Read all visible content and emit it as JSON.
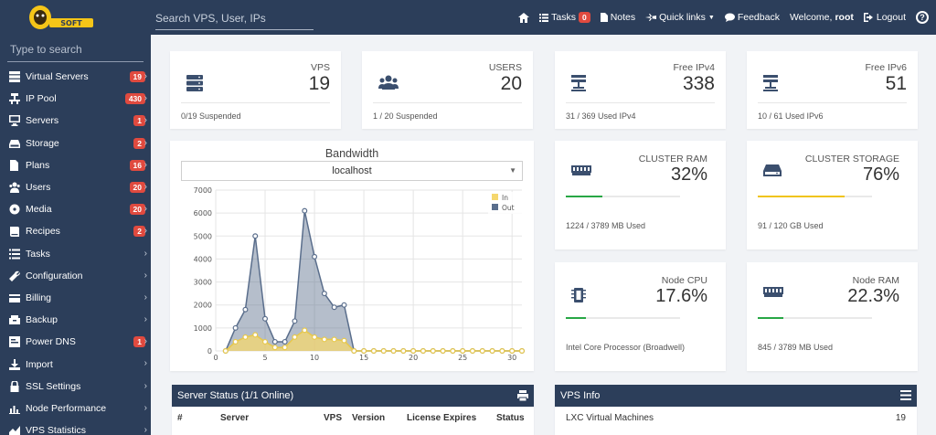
{
  "topbar": {
    "search_placeholder": "Search VPS, User, IPs",
    "tasks_label": "Tasks",
    "tasks_count": "0",
    "notes_label": "Notes",
    "quicklinks_label": "Quick links",
    "feedback_label": "Feedback",
    "welcome_label": "Welcome,",
    "username": "root",
    "logout_label": "Logout"
  },
  "sidebar": {
    "search_placeholder": "Type to search",
    "items": [
      {
        "label": "Virtual Servers",
        "count": "19",
        "icon": "server-icon"
      },
      {
        "label": "IP Pool",
        "count": "430",
        "icon": "ip-pool-icon"
      },
      {
        "label": "Servers",
        "count": "1",
        "icon": "desktop-icon"
      },
      {
        "label": "Storage",
        "count": "2",
        "icon": "hdd-icon"
      },
      {
        "label": "Plans",
        "count": "16",
        "icon": "file-icon"
      },
      {
        "label": "Users",
        "count": "20",
        "icon": "users-icon"
      },
      {
        "label": "Media",
        "count": "20",
        "icon": "disc-icon"
      },
      {
        "label": "Recipes",
        "count": "2",
        "icon": "book-icon"
      },
      {
        "label": "Tasks",
        "count": "",
        "icon": "tasks-icon"
      },
      {
        "label": "Configuration",
        "count": "",
        "icon": "wrench-icon"
      },
      {
        "label": "Billing",
        "count": "",
        "icon": "billing-icon"
      },
      {
        "label": "Backup",
        "count": "",
        "icon": "backup-icon"
      },
      {
        "label": "Power DNS",
        "count": "1",
        "icon": "dns-icon"
      },
      {
        "label": "Import",
        "count": "",
        "icon": "download-icon"
      },
      {
        "label": "SSL Settings",
        "count": "",
        "icon": "lock-icon"
      },
      {
        "label": "Node Performance",
        "count": "",
        "icon": "chart-icon"
      },
      {
        "label": "VPS Statistics",
        "count": "",
        "icon": "stats-icon"
      }
    ]
  },
  "stats": {
    "vps": {
      "label": "VPS",
      "value": "19",
      "foot": "0/19 Suspended"
    },
    "users": {
      "label": "USERS",
      "value": "20",
      "foot": "1 / 20 Suspended"
    },
    "ipv4": {
      "label": "Free IPv4",
      "value": "338",
      "foot": "31 / 369 Used IPv4"
    },
    "ipv6": {
      "label": "Free IPv6",
      "value": "51",
      "foot": "10 / 61 Used IPv6"
    }
  },
  "resources": {
    "cluster_ram": {
      "label": "CLUSTER RAM",
      "value": "32%",
      "foot": "1224 / 3789 MB Used",
      "fill": 0.32,
      "color": "#28a745"
    },
    "cluster_storage": {
      "label": "CLUSTER STORAGE",
      "value": "76%",
      "foot": "91 / 120 GB Used",
      "fill": 0.76,
      "color": "#f0c419"
    },
    "node_cpu": {
      "label": "Node CPU",
      "value": "17.6%",
      "foot": "Intel Core Processor (Broadwell)",
      "fill": 0.176,
      "color": "#28a745"
    },
    "node_ram": {
      "label": "Node RAM",
      "value": "22.3%",
      "foot": "845 / 3789 MB Used",
      "fill": 0.223,
      "color": "#28a745"
    }
  },
  "bandwidth": {
    "title": "Bandwidth",
    "selected_server": "localhost"
  },
  "chart_data": {
    "type": "area",
    "x": [
      1,
      2,
      3,
      4,
      5,
      6,
      7,
      8,
      9,
      10,
      11,
      12,
      13,
      14,
      15,
      16,
      17,
      18,
      19,
      20,
      21,
      22,
      23,
      24,
      25,
      26,
      27,
      28,
      29,
      30,
      31
    ],
    "series": [
      {
        "name": "In",
        "color": "#f5d76e",
        "values": [
          0,
          400,
          600,
          700,
          400,
          150,
          150,
          600,
          900,
          600,
          500,
          500,
          450,
          0,
          0,
          0,
          0,
          0,
          0,
          0,
          0,
          0,
          0,
          0,
          0,
          0,
          0,
          0,
          0,
          0,
          0
        ]
      },
      {
        "name": "Out",
        "color": "#5a6e8c",
        "values": [
          0,
          1000,
          1800,
          5000,
          1400,
          400,
          400,
          1300,
          6100,
          4100,
          2500,
          1900,
          2000,
          0,
          0,
          0,
          0,
          0,
          0,
          0,
          0,
          0,
          0,
          0,
          0,
          0,
          0,
          0,
          0,
          0,
          0
        ]
      }
    ],
    "xticks": [
      0,
      5,
      10,
      15,
      20,
      25,
      30
    ],
    "yticks": [
      0,
      1000,
      2000,
      3000,
      4000,
      5000,
      6000,
      7000
    ],
    "ylim": [
      0,
      7000
    ],
    "xlim": [
      0,
      31
    ],
    "legend": "top-right",
    "grid": true
  },
  "server_status": {
    "title": "Server Status (1/1 Online)",
    "columns": [
      "#",
      "Server",
      "VPS",
      "Version",
      "License Expires",
      "Status"
    ]
  },
  "vps_info": {
    "title": "VPS Info",
    "rows": [
      {
        "label": "LXC Virtual Machines",
        "value": "19"
      }
    ]
  }
}
